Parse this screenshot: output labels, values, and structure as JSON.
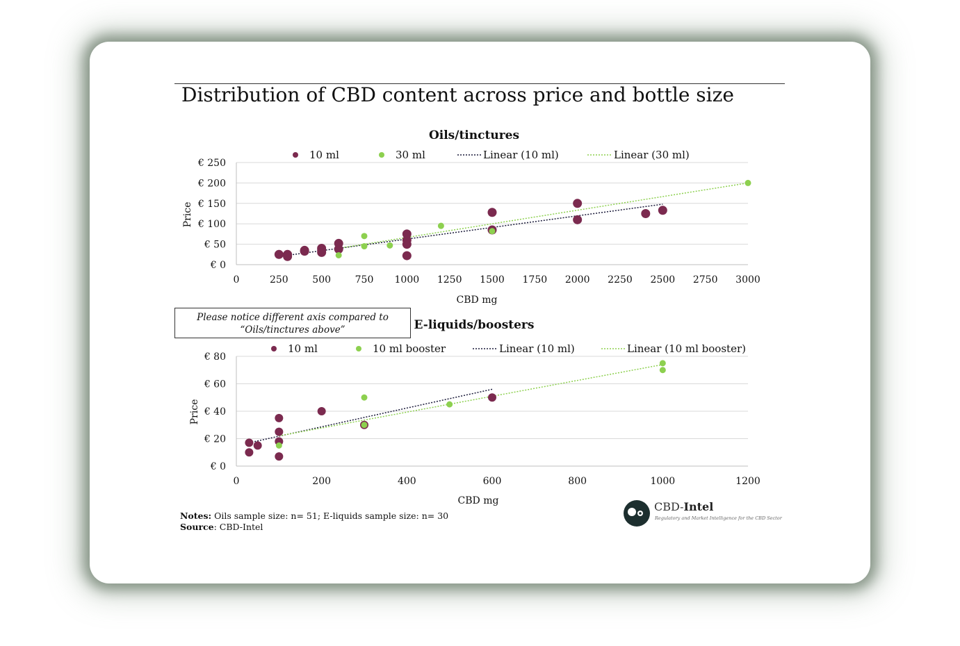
{
  "title": "Distribution of CBD content across price and bottle size",
  "notice": {
    "line1": "Please notice different axis compared to",
    "line2": "“Oils/tinctures above”"
  },
  "notes": {
    "notes_label": "Notes:",
    "notes_text": " Oils sample size: n= 51; E-liquids sample size: n= 30",
    "source_label": "Source",
    "source_text": ": CBD-Intel"
  },
  "logo": {
    "name_part1": "CBD-",
    "name_part2": "Intel",
    "tagline": "Regulatory and Market Intelligence for the CBD Sector"
  },
  "colors": {
    "series_10ml": "#7b2a4f",
    "series_green": "#8dd04f",
    "trend_10ml": "#1a1a3a",
    "trend_green": "#8dd04f",
    "grid": "#d9d9d9"
  },
  "chart_data": [
    {
      "type": "scatter",
      "title": "Oils/tinctures",
      "xlabel": "CBD mg",
      "ylabel": "Price",
      "xlim": [
        0,
        3000
      ],
      "ylim": [
        0,
        250
      ],
      "x_ticks": [
        0,
        250,
        500,
        750,
        1000,
        1250,
        1500,
        1750,
        2000,
        2250,
        2500,
        2750,
        3000
      ],
      "y_ticks": [
        0,
        50,
        100,
        150,
        200,
        250
      ],
      "y_tick_labels": [
        "€ 0",
        "€ 50",
        "€ 100",
        "€ 150",
        "€ 200",
        "€ 250"
      ],
      "grid": true,
      "legend_position": "top",
      "series": [
        {
          "name": "10 ml",
          "points": [
            [
              250,
              25
            ],
            [
              300,
              25
            ],
            [
              300,
              20
            ],
            [
              400,
              35
            ],
            [
              400,
              33
            ],
            [
              500,
              40
            ],
            [
              500,
              35
            ],
            [
              500,
              30
            ],
            [
              600,
              52
            ],
            [
              600,
              38
            ],
            [
              1000,
              75
            ],
            [
              1000,
              60
            ],
            [
              1000,
              50
            ],
            [
              1000,
              22
            ],
            [
              1500,
              128
            ],
            [
              1500,
              85
            ],
            [
              2000,
              150
            ],
            [
              2000,
              110
            ],
            [
              2400,
              125
            ],
            [
              2500,
              133
            ]
          ]
        },
        {
          "name": "30 ml",
          "points": [
            [
              600,
              23
            ],
            [
              750,
              70
            ],
            [
              750,
              45
            ],
            [
              900,
              47
            ],
            [
              1200,
              95
            ],
            [
              1500,
              82
            ],
            [
              3000,
              200
            ]
          ]
        }
      ],
      "trendlines": [
        {
          "name": "Linear (10 ml)",
          "from": [
            250,
            20
          ],
          "to": [
            2500,
            148
          ]
        },
        {
          "name": "Linear (30 ml)",
          "from": [
            600,
            40
          ],
          "to": [
            3000,
            200
          ]
        }
      ]
    },
    {
      "type": "scatter",
      "title": "E-liquids/boosters",
      "xlabel": "CBD mg",
      "ylabel": "Price",
      "xlim": [
        0,
        1200
      ],
      "ylim": [
        0,
        80
      ],
      "x_ticks": [
        0,
        200,
        400,
        600,
        800,
        1000,
        1200
      ],
      "y_ticks": [
        0,
        20,
        40,
        60,
        80
      ],
      "y_tick_labels": [
        "€ 0",
        "€ 20",
        "€ 40",
        "€ 60",
        "€ 80"
      ],
      "grid": true,
      "legend_position": "top",
      "series": [
        {
          "name": "10 ml",
          "points": [
            [
              30,
              17
            ],
            [
              30,
              10
            ],
            [
              50,
              15
            ],
            [
              100,
              35
            ],
            [
              100,
              25
            ],
            [
              100,
              18
            ],
            [
              100,
              7
            ],
            [
              200,
              40
            ],
            [
              300,
              30
            ],
            [
              600,
              50
            ]
          ]
        },
        {
          "name": "10 ml booster",
          "points": [
            [
              100,
              15
            ],
            [
              300,
              50
            ],
            [
              300,
              30
            ],
            [
              500,
              45
            ],
            [
              1000,
              75
            ],
            [
              1000,
              70
            ]
          ]
        }
      ],
      "trendlines": [
        {
          "name": "Linear (10 ml)",
          "from": [
            30,
            17
          ],
          "to": [
            600,
            56
          ]
        },
        {
          "name": "Linear (10 ml booster)",
          "from": [
            100,
            22
          ],
          "to": [
            1000,
            74
          ]
        }
      ]
    }
  ]
}
